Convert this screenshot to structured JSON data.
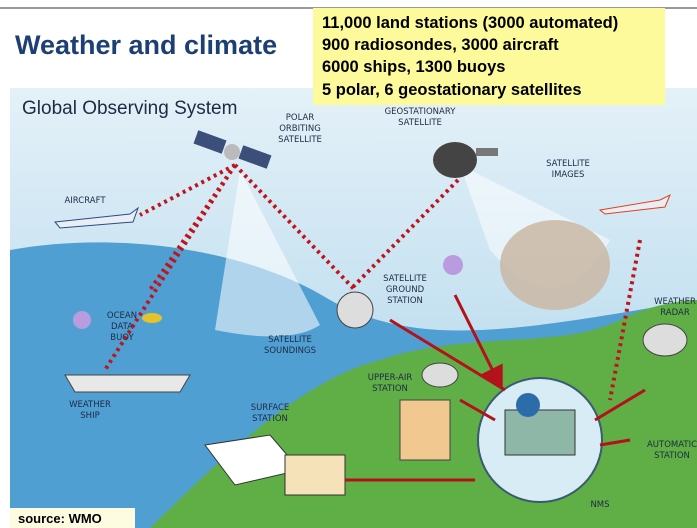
{
  "title": "Weather and climate",
  "callout": {
    "lines": [
      "11,000 land stations (3000 automated)",
      "900 radiosondes, 3000 aircraft",
      "6000 ships, 1300 buoys",
      "5 polar, 6 geostationary satellites"
    ]
  },
  "illustration": {
    "title": "Global Observing System",
    "labels": {
      "polar": [
        "POLAR",
        "ORBITING",
        "SATELLITE"
      ],
      "geostationary": [
        "GEOSTATIONARY",
        "SATELLITE"
      ],
      "images": [
        "SATELLITE",
        "IMAGES"
      ],
      "aircraft": [
        "AIRCRAFT"
      ],
      "buoy": [
        "OCEAN",
        "DATA",
        "BUOY"
      ],
      "soundings": [
        "SATELLITE",
        "SOUNDINGS"
      ],
      "ground": [
        "SATELLITE",
        "GROUND",
        "STATION"
      ],
      "ship": [
        "WEATHER",
        "SHIP"
      ],
      "upper_air": [
        "UPPER-AIR",
        "STATION"
      ],
      "surface": [
        "SURFACE",
        "STATION"
      ],
      "radar": [
        "WEATHER",
        "RADAR"
      ],
      "automatic": [
        "AUTOMATIC",
        "STATION"
      ],
      "nms": [
        "NMS"
      ]
    }
  },
  "source": "source: WMO"
}
